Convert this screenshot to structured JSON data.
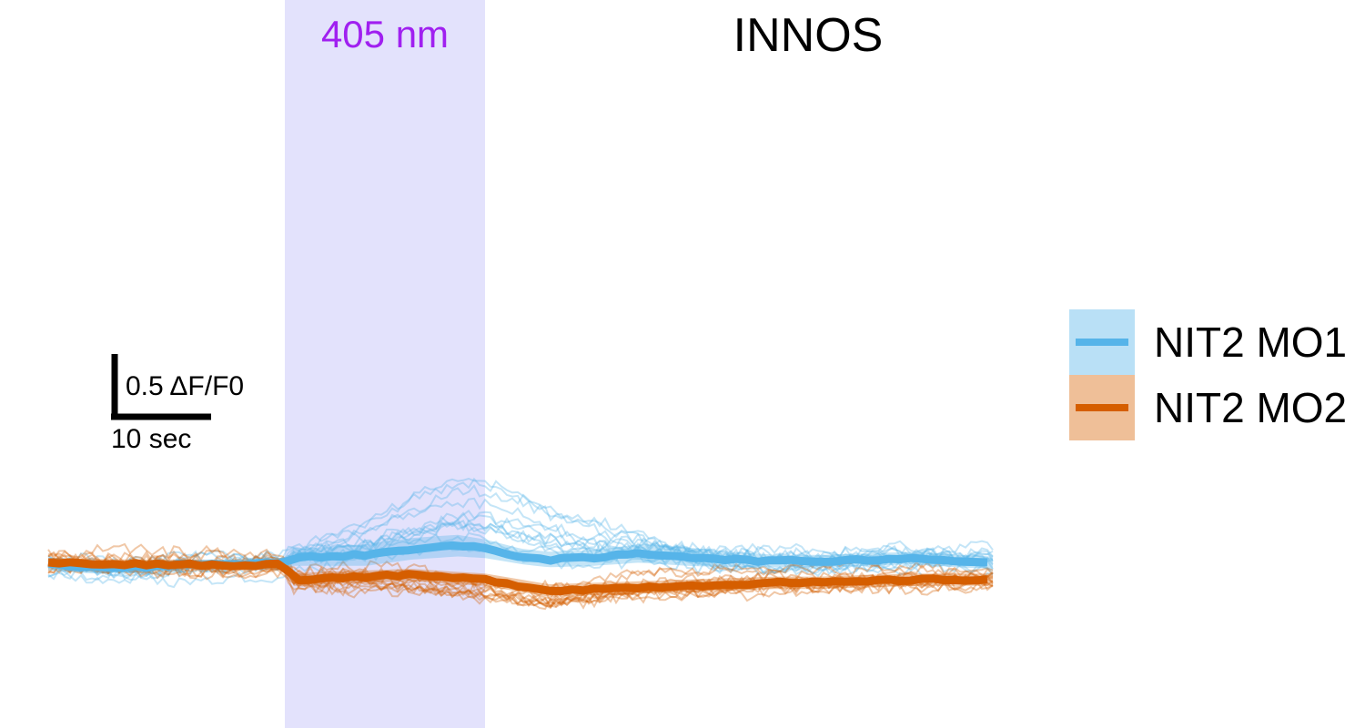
{
  "chart_data": {
    "type": "line",
    "title": "INNOS",
    "stimulus": {
      "label": "405 nm",
      "start_sec": 26,
      "end_sec": 48,
      "color": "#e3e2fc",
      "label_color": "#a020f0"
    },
    "scale_bar": {
      "y_label": "0.5 ΔF/F0",
      "y_value": 0.5,
      "x_label": "10 sec",
      "x_value": 10
    },
    "xlim": [
      0,
      104.5
    ],
    "ylim": [
      -0.18,
      0.3
    ],
    "legend": {
      "position": "right"
    },
    "series": [
      {
        "name": "NIT2 MO1",
        "color": "#56b4e9",
        "band_color": "#b9e0f6",
        "x": [
          0,
          5,
          10,
          15,
          20,
          25,
          26,
          27,
          30,
          35,
          40,
          45,
          48,
          52,
          55,
          60,
          65,
          70,
          75,
          80,
          85,
          90,
          95,
          100,
          104
        ],
        "mean": [
          0,
          -0.01,
          -0.01,
          0,
          0,
          0.005,
          0,
          0.02,
          0.025,
          0.03,
          0.05,
          0.06,
          0.05,
          0.025,
          0.015,
          0.02,
          0.035,
          0.025,
          0.015,
          0.01,
          0.01,
          0.015,
          0.02,
          0.01,
          0.005
        ],
        "sem": [
          0.02,
          0.02,
          0.015,
          0.015,
          0.015,
          0.015,
          0.02,
          0.025,
          0.03,
          0.035,
          0.035,
          0.035,
          0.03,
          0.025,
          0.025,
          0.025,
          0.03,
          0.03,
          0.025,
          0.02,
          0.02,
          0.02,
          0.02,
          0.02,
          0.02
        ]
      },
      {
        "name": "NIT2 MO2",
        "color": "#d55e00",
        "band_color": "#efbf98",
        "x": [
          0,
          5,
          10,
          15,
          20,
          25,
          26,
          27,
          30,
          35,
          40,
          45,
          48,
          52,
          55,
          60,
          65,
          70,
          75,
          80,
          85,
          90,
          95,
          100,
          104
        ],
        "mean": [
          0.005,
          0.002,
          0,
          0,
          -0.005,
          0,
          -0.005,
          -0.05,
          -0.045,
          -0.04,
          -0.035,
          -0.045,
          -0.05,
          -0.07,
          -0.085,
          -0.08,
          -0.075,
          -0.07,
          -0.065,
          -0.06,
          -0.06,
          -0.055,
          -0.05,
          -0.05,
          -0.05
        ],
        "sem": [
          0.015,
          0.015,
          0.015,
          0.015,
          0.015,
          0.015,
          0.015,
          0.02,
          0.02,
          0.02,
          0.02,
          0.02,
          0.02,
          0.02,
          0.02,
          0.02,
          0.02,
          0.02,
          0.02,
          0.02,
          0.02,
          0.02,
          0.02,
          0.02,
          0.02
        ]
      }
    ]
  }
}
